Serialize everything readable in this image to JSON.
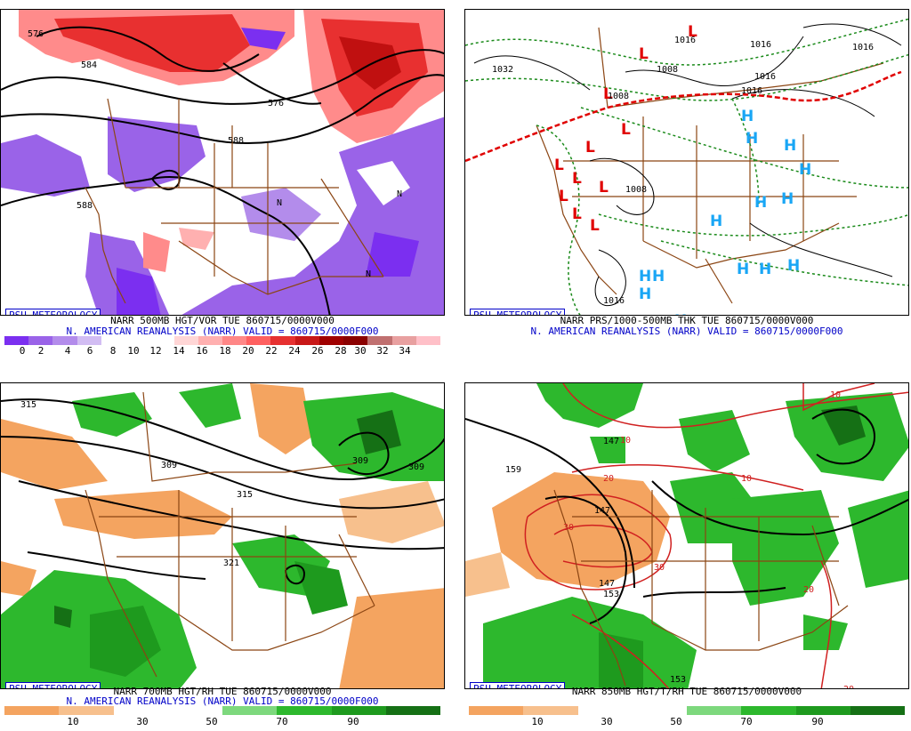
{
  "panels": {
    "tl": {
      "tag": "PSU METEOROLOGY",
      "line1": "NARR 500MB HGT/VOR TUE 860715/0000V000",
      "line2": "N. AMERICAN REANALYSIS (NARR) VALID = 860715/0000F000",
      "scale": [
        "0",
        "2",
        "4",
        "6",
        "8",
        "10",
        "12",
        "14",
        "16",
        "18",
        "20",
        "22",
        "24",
        "26",
        "28",
        "30",
        "32",
        "34"
      ],
      "contours": [
        "576",
        "584",
        "576",
        "588",
        "588"
      ]
    },
    "tr": {
      "tag": "PSU METEOROLOGY",
      "line1": "NARR PRS/1000-500MB THK TUE 860715/0000V000",
      "line2": "N. AMERICAN REANALYSIS (NARR) VALID = 860715/0000F000",
      "contours": [
        "1032",
        "1008",
        "1016",
        "1016",
        "1016",
        "1016",
        "1008",
        "1008",
        "1016",
        "1016"
      ]
    },
    "bl": {
      "tag": "PSU METEOROLOGY",
      "line1": "NARR 700MB HGT/RH TUE 860715/0000V000",
      "line2": "N. AMERICAN REANALYSIS (NARR) VALID = 860715/0000F000",
      "scale": [
        "10",
        "30",
        "50",
        "70",
        "90"
      ],
      "contours": [
        "315",
        "309",
        "315",
        "309",
        "309",
        "321"
      ]
    },
    "br": {
      "tag": "PSU METEOROLOGY",
      "line1": "NARR 850MB HGT/T/RH TUE 860715/0000V000",
      "scale": [
        "10",
        "30",
        "50",
        "70",
        "90"
      ],
      "contours": [
        "159",
        "147",
        "147",
        "153",
        "147",
        "153",
        "10",
        "10",
        "20",
        "30",
        "30",
        "20",
        "20",
        "10"
      ]
    }
  },
  "colors": {
    "vort": [
      "#7b2ff0",
      "#9a63e8",
      "#b38ceb",
      "#d2bdf3",
      "#ffffff",
      "#ffffff",
      "#ffffff",
      "#ffd6d6",
      "#ffb0b0",
      "#ff8787",
      "#ff6060",
      "#e63030",
      "#c81818",
      "#a00000",
      "#8a0000",
      "#c07070",
      "#e8a0a0",
      "#ffc0c8"
    ],
    "rh": [
      "#f4a460",
      "#f7c08d",
      "#ffffff",
      "#ffffff",
      "#7dd87d",
      "#2db82d",
      "#1e9a1e",
      "#157015"
    ],
    "low": "#e00000",
    "high": "#19a6f5",
    "geog": "#8b4513"
  },
  "symbols": {
    "low": "L",
    "high": "H",
    "north": "N"
  }
}
